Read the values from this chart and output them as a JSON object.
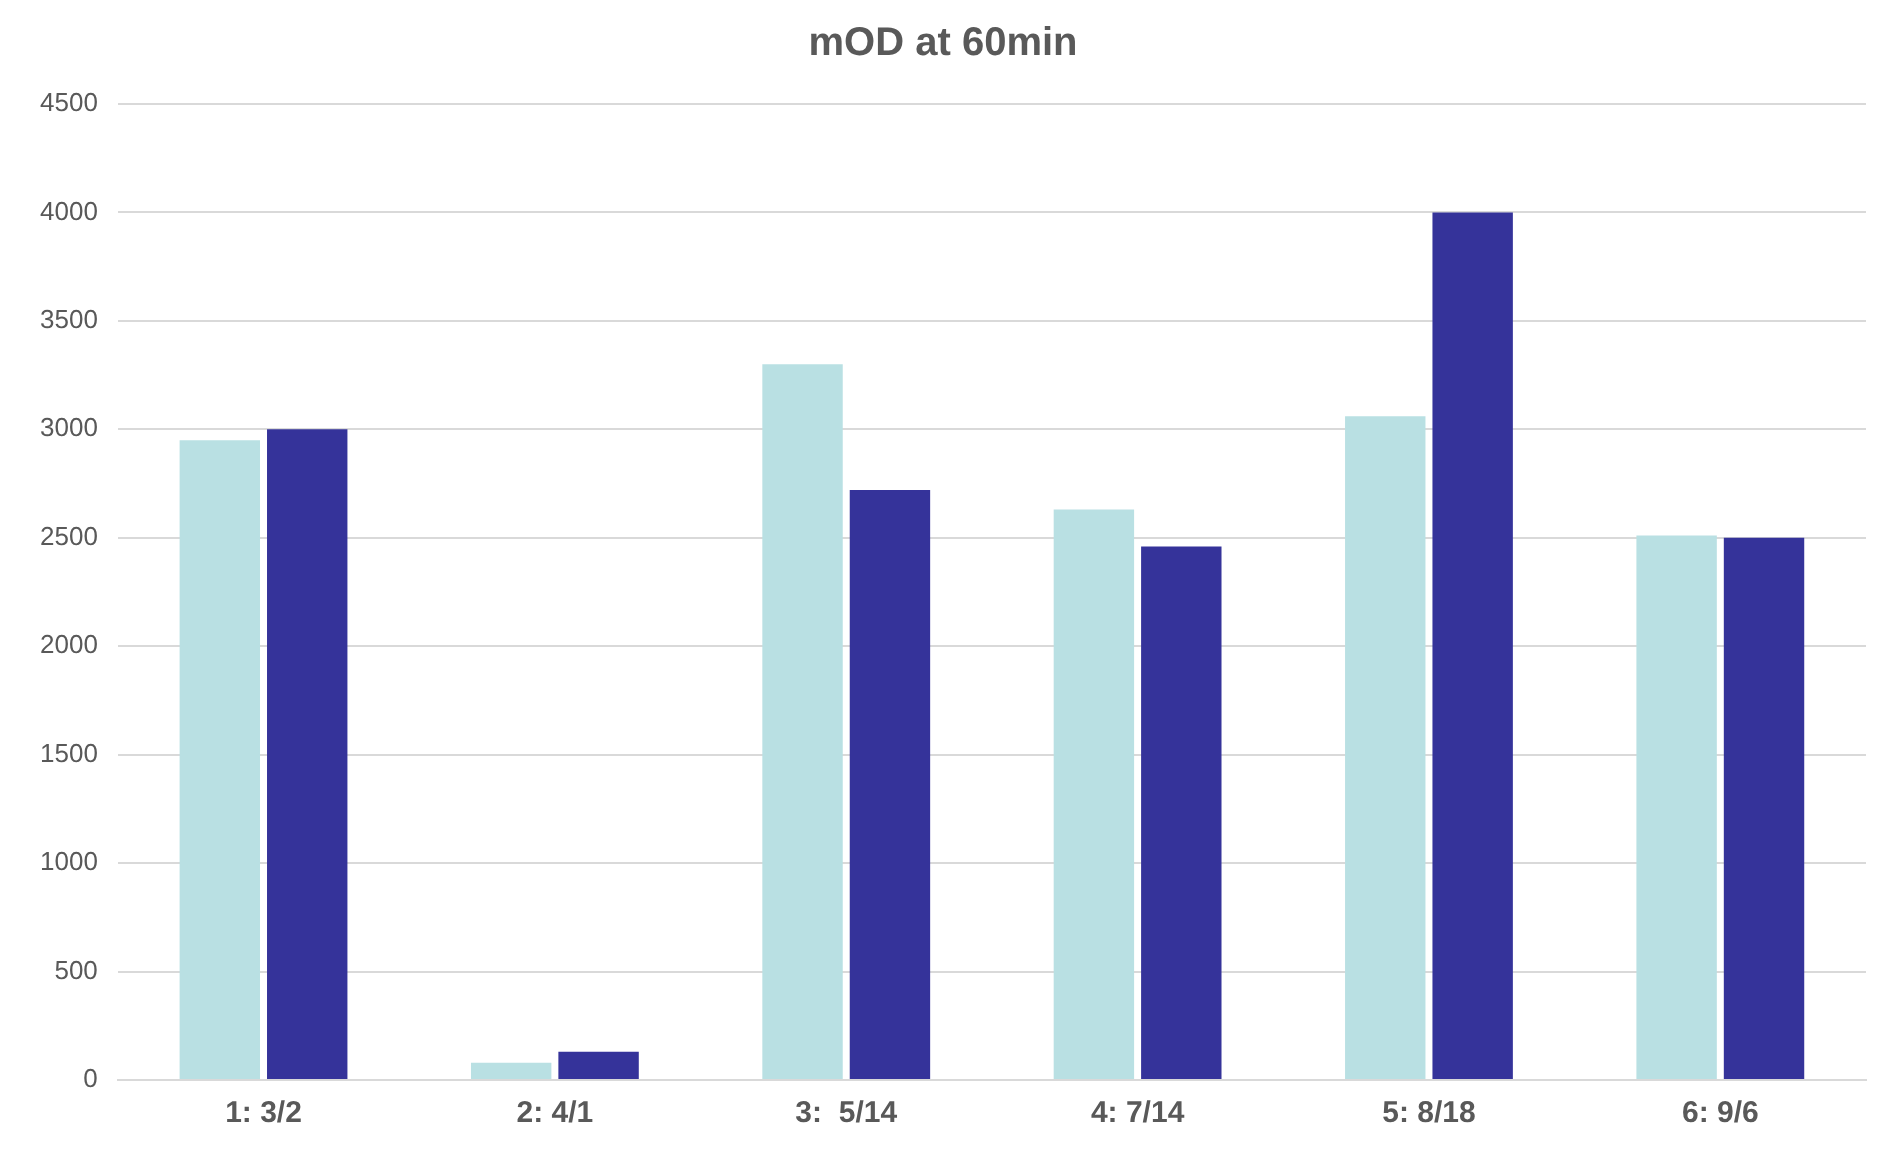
{
  "chart_data": {
    "type": "bar",
    "title": "mOD at 60min",
    "categories": [
      "1: 3/2",
      "2: 4/1",
      "3:  5/14",
      "4: 7/14",
      "5: 8/18",
      "6: 9/6"
    ],
    "series": [
      {
        "color": "#b9e0e3",
        "values": [
          2950,
          80,
          3300,
          2630,
          3060,
          2510
        ]
      },
      {
        "color": "#35339a",
        "values": [
          3000,
          130,
          2720,
          2460,
          4000,
          2500
        ]
      }
    ],
    "ylim": [
      0,
      4500
    ],
    "yticks": [
      0,
      500,
      1000,
      1500,
      2000,
      2500,
      3000,
      3500,
      4000,
      4500
    ],
    "grid": "y",
    "legend": false
  }
}
